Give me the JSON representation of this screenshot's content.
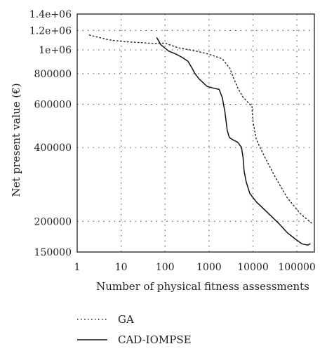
{
  "chart_data": {
    "type": "line",
    "title": "",
    "xlabel": "Number of physical fitness assessments",
    "ylabel": "Net present value (€)",
    "x_scale": "log",
    "y_scale": "log",
    "xlim": [
      1,
      250000
    ],
    "ylim": [
      150000,
      1400000
    ],
    "grid": true,
    "legend_position": "bottom-left, below plot",
    "x_ticks": [
      1,
      10,
      100,
      1000,
      10000,
      100000
    ],
    "x_tick_labels": [
      "1",
      "10",
      "100",
      "1000",
      "10000",
      "100000"
    ],
    "y_ticks": [
      150000,
      200000,
      400000,
      600000,
      800000,
      1000000,
      1200000,
      1400000
    ],
    "y_tick_labels": [
      "150000",
      "200000",
      "400000",
      "600000",
      "800000",
      "1e+06",
      "1.2e+06",
      "1.4e+06"
    ],
    "series": [
      {
        "name": "GA",
        "style": "dotted",
        "color": "#222222",
        "x": [
          1.9,
          5,
          12,
          30,
          60,
          100,
          200,
          500,
          1000,
          2000,
          3000,
          3500,
          4500,
          6000,
          8500,
          9500,
          10000,
          12000,
          18000,
          30000,
          60000,
          120000,
          230000
        ],
        "y": [
          1150000,
          1100000,
          1080000,
          1070000,
          1060000,
          1065000,
          1020000,
          990000,
          960000,
          920000,
          840000,
          780000,
          700000,
          640000,
          600000,
          590000,
          510000,
          430000,
          370000,
          310000,
          250000,
          215000,
          195000
        ]
      },
      {
        "name": "CAD-IOMPSE",
        "style": "solid",
        "color": "#111111",
        "x": [
          65,
          80,
          120,
          180,
          250,
          330,
          400,
          480,
          600,
          900,
          1200,
          1700,
          2000,
          2300,
          2600,
          2900,
          3500,
          4500,
          5500,
          6000,
          6300,
          7000,
          8500,
          12000,
          20000,
          40000,
          60000,
          90000,
          130000,
          175000,
          200000
        ],
        "y": [
          1120000,
          1050000,
          990000,
          960000,
          930000,
          900000,
          850000,
          800000,
          760000,
          710000,
          700000,
          690000,
          640000,
          560000,
          470000,
          440000,
          430000,
          420000,
          400000,
          360000,
          320000,
          290000,
          260000,
          240000,
          220000,
          195000,
          180000,
          170000,
          162000,
          160000,
          162000
        ]
      }
    ]
  }
}
